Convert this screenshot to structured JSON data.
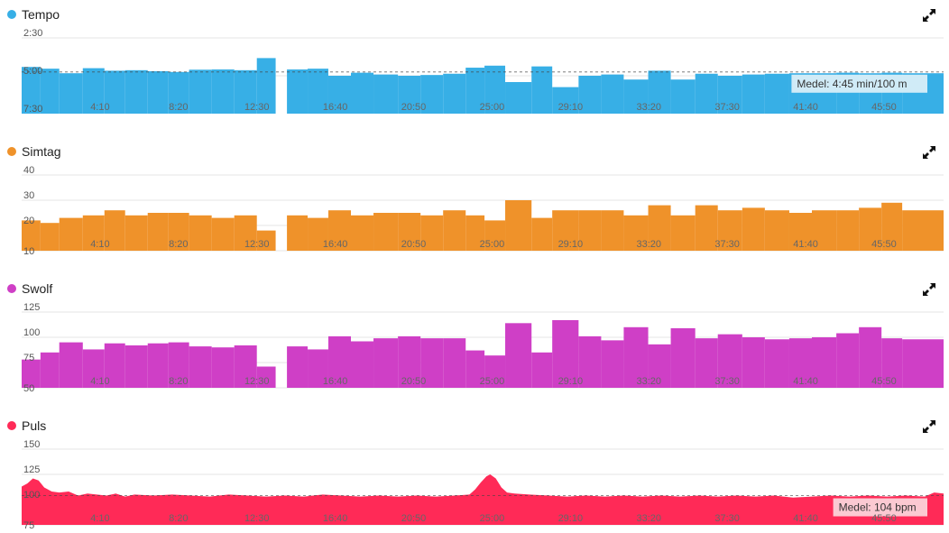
{
  "panels": [
    {
      "name": "Tempo",
      "color": "#37AFE6",
      "avg_label": "Medel: 4:45 min/100 m",
      "avg_label_bg": "#D8EEF8",
      "icon": "expand-icon"
    },
    {
      "name": "Simtag",
      "color": "#EF922A",
      "avg_label": "",
      "icon": "expand-icon"
    },
    {
      "name": "Swolf",
      "color": "#CF3FC6",
      "avg_label": "",
      "icon": "expand-icon"
    },
    {
      "name": "Puls",
      "color": "#FF2A57",
      "avg_label": "Medel: 104 bpm",
      "avg_label_bg": "#FBD2D9",
      "icon": "expand-icon"
    }
  ],
  "x_tick_labels": [
    "4:10",
    "8:20",
    "12:30",
    "16:40",
    "20:50",
    "25:00",
    "29:10",
    "33:20",
    "37:30",
    "41:40",
    "45:50"
  ],
  "chart_data": [
    {
      "type": "bar",
      "title": "Tempo",
      "y_unit": "min/100 m",
      "y_inverted": true,
      "y_tick_labels": [
        "2:30",
        "5:00",
        "7:30"
      ],
      "ylim_seconds": [
        150,
        450
      ],
      "average_seconds": 285,
      "x_range_minutes": [
        0,
        49
      ],
      "bars": [
        {
          "start": 0.0,
          "end": 1.0,
          "value": 265
        },
        {
          "start": 1.0,
          "end": 2.0,
          "value": 272
        },
        {
          "start": 2.0,
          "end": 3.25,
          "value": 290
        },
        {
          "start": 3.25,
          "end": 4.4,
          "value": 270
        },
        {
          "start": 4.4,
          "end": 5.5,
          "value": 280
        },
        {
          "start": 5.5,
          "end": 6.7,
          "value": 278
        },
        {
          "start": 6.7,
          "end": 7.8,
          "value": 282
        },
        {
          "start": 7.8,
          "end": 8.9,
          "value": 285
        },
        {
          "start": 8.9,
          "end": 10.1,
          "value": 276
        },
        {
          "start": 10.1,
          "end": 11.3,
          "value": 275
        },
        {
          "start": 11.3,
          "end": 12.5,
          "value": 278
        },
        {
          "start": 12.5,
          "end": 13.5,
          "value": 230
        },
        {
          "start": 14.1,
          "end": 15.2,
          "value": 275
        },
        {
          "start": 15.2,
          "end": 16.3,
          "value": 272
        },
        {
          "start": 16.3,
          "end": 17.5,
          "value": 300
        },
        {
          "start": 17.5,
          "end": 18.7,
          "value": 288
        },
        {
          "start": 18.7,
          "end": 20.0,
          "value": 295
        },
        {
          "start": 20.0,
          "end": 21.2,
          "value": 300
        },
        {
          "start": 21.2,
          "end": 22.4,
          "value": 297
        },
        {
          "start": 22.4,
          "end": 23.6,
          "value": 292
        },
        {
          "start": 23.6,
          "end": 24.6,
          "value": 268
        },
        {
          "start": 24.6,
          "end": 25.7,
          "value": 260
        },
        {
          "start": 25.7,
          "end": 27.1,
          "value": 325
        },
        {
          "start": 27.1,
          "end": 28.2,
          "value": 263
        },
        {
          "start": 28.2,
          "end": 29.6,
          "value": 345
        },
        {
          "start": 29.6,
          "end": 30.8,
          "value": 300
        },
        {
          "start": 30.8,
          "end": 32.0,
          "value": 295
        },
        {
          "start": 32.0,
          "end": 33.3,
          "value": 315
        },
        {
          "start": 33.3,
          "end": 34.5,
          "value": 280
        },
        {
          "start": 34.5,
          "end": 35.8,
          "value": 315
        },
        {
          "start": 35.8,
          "end": 37.0,
          "value": 292
        },
        {
          "start": 37.0,
          "end": 38.3,
          "value": 300
        },
        {
          "start": 38.3,
          "end": 39.5,
          "value": 295
        },
        {
          "start": 39.5,
          "end": 40.8,
          "value": 292
        },
        {
          "start": 40.8,
          "end": 42.0,
          "value": 290
        },
        {
          "start": 42.0,
          "end": 43.3,
          "value": 290
        },
        {
          "start": 43.3,
          "end": 44.5,
          "value": 288
        },
        {
          "start": 44.5,
          "end": 45.7,
          "value": 290
        },
        {
          "start": 45.7,
          "end": 46.8,
          "value": 288
        },
        {
          "start": 46.8,
          "end": 49.0,
          "value": 290
        }
      ]
    },
    {
      "type": "bar",
      "title": "Simtag",
      "y_tick_labels": [
        "10",
        "20",
        "30",
        "40"
      ],
      "ylim": [
        10,
        40
      ],
      "x_range_minutes": [
        0,
        49
      ],
      "bars": [
        {
          "start": 0.0,
          "end": 1.0,
          "value": 22
        },
        {
          "start": 1.0,
          "end": 2.0,
          "value": 21
        },
        {
          "start": 2.0,
          "end": 3.25,
          "value": 23
        },
        {
          "start": 3.25,
          "end": 4.4,
          "value": 24
        },
        {
          "start": 4.4,
          "end": 5.5,
          "value": 26
        },
        {
          "start": 5.5,
          "end": 6.7,
          "value": 24
        },
        {
          "start": 6.7,
          "end": 7.8,
          "value": 25
        },
        {
          "start": 7.8,
          "end": 8.9,
          "value": 25
        },
        {
          "start": 8.9,
          "end": 10.1,
          "value": 24
        },
        {
          "start": 10.1,
          "end": 11.3,
          "value": 23
        },
        {
          "start": 11.3,
          "end": 12.5,
          "value": 24
        },
        {
          "start": 12.5,
          "end": 13.5,
          "value": 18
        },
        {
          "start": 14.1,
          "end": 15.2,
          "value": 24
        },
        {
          "start": 15.2,
          "end": 16.3,
          "value": 23
        },
        {
          "start": 16.3,
          "end": 17.5,
          "value": 26
        },
        {
          "start": 17.5,
          "end": 18.7,
          "value": 24
        },
        {
          "start": 18.7,
          "end": 20.0,
          "value": 25
        },
        {
          "start": 20.0,
          "end": 21.2,
          "value": 25
        },
        {
          "start": 21.2,
          "end": 22.4,
          "value": 24
        },
        {
          "start": 22.4,
          "end": 23.6,
          "value": 26
        },
        {
          "start": 23.6,
          "end": 24.6,
          "value": 24
        },
        {
          "start": 24.6,
          "end": 25.7,
          "value": 22
        },
        {
          "start": 25.7,
          "end": 27.1,
          "value": 30
        },
        {
          "start": 27.1,
          "end": 28.2,
          "value": 23
        },
        {
          "start": 28.2,
          "end": 29.6,
          "value": 26
        },
        {
          "start": 29.6,
          "end": 30.8,
          "value": 26
        },
        {
          "start": 30.8,
          "end": 32.0,
          "value": 26
        },
        {
          "start": 32.0,
          "end": 33.3,
          "value": 24
        },
        {
          "start": 33.3,
          "end": 34.5,
          "value": 28
        },
        {
          "start": 34.5,
          "end": 35.8,
          "value": 24
        },
        {
          "start": 35.8,
          "end": 37.0,
          "value": 28
        },
        {
          "start": 37.0,
          "end": 38.3,
          "value": 26
        },
        {
          "start": 38.3,
          "end": 39.5,
          "value": 27
        },
        {
          "start": 39.5,
          "end": 40.8,
          "value": 26
        },
        {
          "start": 40.8,
          "end": 42.0,
          "value": 25
        },
        {
          "start": 42.0,
          "end": 43.3,
          "value": 26
        },
        {
          "start": 43.3,
          "end": 44.5,
          "value": 26
        },
        {
          "start": 44.5,
          "end": 45.7,
          "value": 27
        },
        {
          "start": 45.7,
          "end": 46.8,
          "value": 29
        },
        {
          "start": 46.8,
          "end": 49.0,
          "value": 26
        }
      ]
    },
    {
      "type": "bar",
      "title": "Swolf",
      "y_tick_labels": [
        "50",
        "75",
        "100",
        "125"
      ],
      "ylim": [
        50,
        125
      ],
      "x_range_minutes": [
        0,
        49
      ],
      "bars": [
        {
          "start": 0.0,
          "end": 1.0,
          "value": 78
        },
        {
          "start": 1.0,
          "end": 2.0,
          "value": 85
        },
        {
          "start": 2.0,
          "end": 3.25,
          "value": 95
        },
        {
          "start": 3.25,
          "end": 4.4,
          "value": 88
        },
        {
          "start": 4.4,
          "end": 5.5,
          "value": 94
        },
        {
          "start": 5.5,
          "end": 6.7,
          "value": 92
        },
        {
          "start": 6.7,
          "end": 7.8,
          "value": 94
        },
        {
          "start": 7.8,
          "end": 8.9,
          "value": 95
        },
        {
          "start": 8.9,
          "end": 10.1,
          "value": 91
        },
        {
          "start": 10.1,
          "end": 11.3,
          "value": 90
        },
        {
          "start": 11.3,
          "end": 12.5,
          "value": 92
        },
        {
          "start": 12.5,
          "end": 13.5,
          "value": 71
        },
        {
          "start": 14.1,
          "end": 15.2,
          "value": 91
        },
        {
          "start": 15.2,
          "end": 16.3,
          "value": 88
        },
        {
          "start": 16.3,
          "end": 17.5,
          "value": 101
        },
        {
          "start": 17.5,
          "end": 18.7,
          "value": 96
        },
        {
          "start": 18.7,
          "end": 20.0,
          "value": 99
        },
        {
          "start": 20.0,
          "end": 21.2,
          "value": 101
        },
        {
          "start": 21.2,
          "end": 22.4,
          "value": 99
        },
        {
          "start": 22.4,
          "end": 23.6,
          "value": 99
        },
        {
          "start": 23.6,
          "end": 24.6,
          "value": 87
        },
        {
          "start": 24.6,
          "end": 25.7,
          "value": 82
        },
        {
          "start": 25.7,
          "end": 27.1,
          "value": 114
        },
        {
          "start": 27.1,
          "end": 28.2,
          "value": 85
        },
        {
          "start": 28.2,
          "end": 29.6,
          "value": 117
        },
        {
          "start": 29.6,
          "end": 30.8,
          "value": 101
        },
        {
          "start": 30.8,
          "end": 32.0,
          "value": 97
        },
        {
          "start": 32.0,
          "end": 33.3,
          "value": 110
        },
        {
          "start": 33.3,
          "end": 34.5,
          "value": 93
        },
        {
          "start": 34.5,
          "end": 35.8,
          "value": 109
        },
        {
          "start": 35.8,
          "end": 37.0,
          "value": 99
        },
        {
          "start": 37.0,
          "end": 38.3,
          "value": 103
        },
        {
          "start": 38.3,
          "end": 39.5,
          "value": 100
        },
        {
          "start": 39.5,
          "end": 40.8,
          "value": 98
        },
        {
          "start": 40.8,
          "end": 42.0,
          "value": 99
        },
        {
          "start": 42.0,
          "end": 43.3,
          "value": 100
        },
        {
          "start": 43.3,
          "end": 44.5,
          "value": 104
        },
        {
          "start": 44.5,
          "end": 45.7,
          "value": 110
        },
        {
          "start": 45.7,
          "end": 46.8,
          "value": 99
        },
        {
          "start": 46.8,
          "end": 49.0,
          "value": 98
        }
      ]
    },
    {
      "type": "area",
      "title": "Puls",
      "y_unit": "bpm",
      "y_tick_labels": [
        "75",
        "100",
        "125",
        "150"
      ],
      "ylim": [
        75,
        150
      ],
      "average": 104,
      "x_range_minutes": [
        0,
        49
      ],
      "points": [
        [
          0,
          113
        ],
        [
          0.3,
          116
        ],
        [
          0.6,
          121
        ],
        [
          0.9,
          119
        ],
        [
          1.2,
          112
        ],
        [
          1.6,
          108
        ],
        [
          2.0,
          107
        ],
        [
          2.5,
          108
        ],
        [
          3.0,
          104
        ],
        [
          3.5,
          106
        ],
        [
          4.0,
          105
        ],
        [
          4.5,
          104
        ],
        [
          5.0,
          106
        ],
        [
          5.5,
          103
        ],
        [
          6.0,
          105
        ],
        [
          7.0,
          104
        ],
        [
          8.0,
          105
        ],
        [
          9.0,
          104
        ],
        [
          10.0,
          103
        ],
        [
          11.0,
          105
        ],
        [
          12.0,
          104
        ],
        [
          13.0,
          103
        ],
        [
          14.0,
          104
        ],
        [
          15.0,
          103
        ],
        [
          16.0,
          105
        ],
        [
          17.0,
          104
        ],
        [
          18.0,
          103
        ],
        [
          19.0,
          104
        ],
        [
          20.0,
          103
        ],
        [
          21.0,
          104
        ],
        [
          22.0,
          103
        ],
        [
          23.0,
          104
        ],
        [
          23.8,
          105
        ],
        [
          24.1,
          110
        ],
        [
          24.4,
          117
        ],
        [
          24.7,
          123
        ],
        [
          24.9,
          125
        ],
        [
          25.2,
          121
        ],
        [
          25.5,
          112
        ],
        [
          25.8,
          107
        ],
        [
          26.2,
          106
        ],
        [
          27.0,
          105
        ],
        [
          28.0,
          104
        ],
        [
          29.0,
          103
        ],
        [
          30.0,
          104
        ],
        [
          31.0,
          103
        ],
        [
          32.0,
          104
        ],
        [
          33.0,
          103
        ],
        [
          34.0,
          104
        ],
        [
          35.0,
          103
        ],
        [
          36.0,
          104
        ],
        [
          37.0,
          103
        ],
        [
          38.0,
          104
        ],
        [
          39.0,
          103
        ],
        [
          40.0,
          104
        ],
        [
          41.0,
          102
        ],
        [
          42.0,
          103
        ],
        [
          43.0,
          104
        ],
        [
          44.0,
          103
        ],
        [
          45.0,
          104
        ],
        [
          46.0,
          103
        ],
        [
          47.0,
          104
        ],
        [
          48.0,
          103
        ],
        [
          48.5,
          107
        ],
        [
          49.0,
          106
        ]
      ]
    }
  ]
}
